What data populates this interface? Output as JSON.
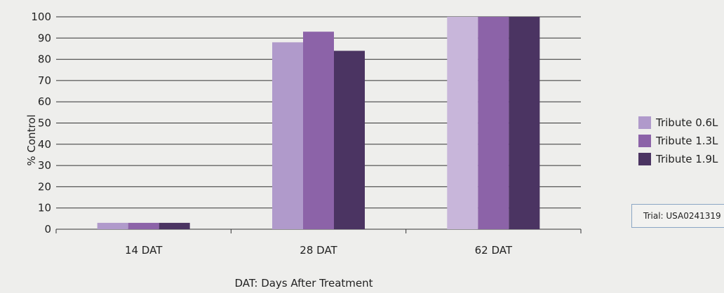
{
  "chart_data": {
    "type": "bar",
    "categories": [
      "14 DAT",
      "28 DAT",
      "62 DAT"
    ],
    "series": [
      {
        "name": "Tribute 0.6L",
        "color": "#b09acb",
        "color_last": "#c8b6da",
        "values": [
          3,
          88,
          100
        ]
      },
      {
        "name": "Tribute 1.3L",
        "color": "#8c63a8",
        "values": [
          3,
          93,
          100
        ]
      },
      {
        "name": "Tribute 1.9L",
        "color": "#4b3462",
        "values": [
          3,
          84,
          100
        ]
      }
    ],
    "ylabel": "% Control",
    "xlabel": "DAT: Days After Treatment",
    "ylim": [
      0,
      100
    ],
    "yticks": [
      0,
      10,
      20,
      30,
      40,
      50,
      60,
      70,
      80,
      90,
      100
    ],
    "grid": true,
    "legend_position": "right"
  },
  "annotation": "Trial: USA0241319"
}
